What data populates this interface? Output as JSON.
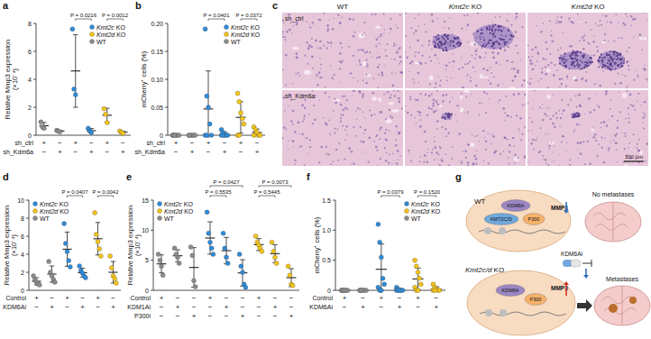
{
  "chart_data": [
    {
      "type": "dot",
      "panel_label": "a",
      "y_label": "Relative Mmp3 expression",
      "y_label_unit": "(×10⁻⁴)",
      "ylim": [
        0,
        8
      ],
      "yticks": [
        0,
        2,
        4,
        6,
        8
      ],
      "grid": false,
      "legend": "upper right",
      "series": [
        {
          "name": "Kmt2c KO",
          "color": "#2f8bd9"
        },
        {
          "name": "Kmt2d KO",
          "color": "#f4c419"
        },
        {
          "name": "WT",
          "color": "#8c8c8c"
        }
      ],
      "columns": [
        {
          "group": "WT",
          "points": [
            0.95,
            0.6,
            0.5
          ],
          "mean": 0.68,
          "sd": 0.23
        },
        {
          "group": "WT",
          "points": [
            0.35,
            0.3,
            0.25
          ],
          "mean": 0.3,
          "sd": 0.05
        },
        {
          "group": "Kmt2c KO",
          "points": [
            7.6,
            3.3,
            2.9
          ],
          "mean": 4.6,
          "sd": 2.6
        },
        {
          "group": "Kmt2c KO",
          "points": [
            0.5,
            0.3,
            0.2
          ],
          "mean": 0.33,
          "sd": 0.15
        },
        {
          "group": "Kmt2d KO",
          "points": [
            1.9,
            1.5,
            0.9
          ],
          "mean": 1.43,
          "sd": 0.5
        },
        {
          "group": "Kmt2d KO",
          "points": [
            0.3,
            0.2,
            0.15
          ],
          "mean": 0.22,
          "sd": 0.08
        }
      ],
      "conditions": [
        {
          "label": "sh_ctrl",
          "marks": [
            "+",
            "−",
            "+",
            "−",
            "+",
            "−"
          ]
        },
        {
          "label": "sh_Kdm6a",
          "marks": [
            "−",
            "+",
            "−",
            "+",
            "−",
            "+"
          ]
        }
      ],
      "p_values": [
        {
          "label": "P = 0.0216",
          "columns": [
            2,
            3
          ]
        },
        {
          "label": "P = 0.0012",
          "columns": [
            4,
            5
          ]
        }
      ]
    },
    {
      "type": "dot",
      "panel_label": "b",
      "y_label": "mCherry⁺ cells (%)",
      "ylim": [
        0,
        0.2
      ],
      "yticks": [
        0,
        0.05,
        {
          "value": 0.1,
          "label": "0.10"
        },
        0.15,
        {
          "value": 0.2,
          "label": "0.20"
        }
      ],
      "grid": false,
      "legend": "upper right",
      "series": [
        {
          "name": "Kmt2c KO",
          "color": "#2f8bd9"
        },
        {
          "name": "Kmt2d KO",
          "color": "#f4c419"
        },
        {
          "name": "WT",
          "color": "#8c8c8c"
        }
      ],
      "columns": [
        {
          "group": "WT",
          "points": [
            0,
            0,
            0,
            0,
            0,
            0,
            0
          ],
          "mean": 0,
          "sd": 0
        },
        {
          "group": "WT",
          "points": [
            0,
            0,
            0,
            0,
            0,
            0
          ],
          "mean": 0,
          "sd": 0
        },
        {
          "group": "Kmt2c KO",
          "points": [
            0.19,
            0.07,
            0.05,
            0.02,
            0,
            0,
            0
          ],
          "mean": 0.047,
          "sd": 0.068
        },
        {
          "group": "Kmt2c KO",
          "points": [
            0.01,
            0.005,
            0,
            0,
            0,
            0,
            0
          ],
          "mean": 0.002,
          "sd": 0.004
        },
        {
          "group": "Kmt2d KO",
          "points": [
            0.075,
            0.06,
            0.04,
            0.03,
            0.02,
            0,
            0
          ],
          "mean": 0.032,
          "sd": 0.028
        },
        {
          "group": "Kmt2d KO",
          "points": [
            0.015,
            0.01,
            0.005,
            0,
            0,
            0
          ],
          "mean": 0.005,
          "sd": 0.006
        }
      ],
      "conditions": [
        {
          "label": "sh_ctrl",
          "marks": [
            "+",
            "−",
            "+",
            "−",
            "+",
            "−"
          ]
        },
        {
          "label": "sh_Kdm6a",
          "marks": [
            "−",
            "+",
            "−",
            "+",
            "−",
            "+"
          ]
        }
      ],
      "p_values": [
        {
          "label": "P = 0.0401",
          "columns": [
            2,
            3
          ]
        },
        {
          "label": "P = 0.0372",
          "columns": [
            4,
            5
          ]
        }
      ]
    },
    {
      "type": "dot",
      "panel_label": "d",
      "y_label": "Relative Mmp3 expression",
      "y_label_unit": "(×10⁻⁴)",
      "ylim": [
        0,
        10
      ],
      "yticks": [
        0,
        2,
        4,
        6,
        8,
        10
      ],
      "grid": false,
      "legend": "upper left",
      "series": [
        {
          "name": "Kmt2c KO",
          "color": "#2f8bd9"
        },
        {
          "name": "Kmt2d KO",
          "color": "#f4c419"
        },
        {
          "name": "WT",
          "color": "#8c8c8c"
        }
      ],
      "columns": [
        {
          "group": "WT",
          "points": [
            1.6,
            1.2,
            0.9,
            0.7,
            0.6
          ],
          "mean": 1.0,
          "sd": 0.4
        },
        {
          "group": "WT",
          "points": [
            3.2,
            2.0,
            1.6,
            1.2,
            0.9
          ],
          "mean": 1.8,
          "sd": 0.9
        },
        {
          "group": "Kmt2c KO",
          "points": [
            7.4,
            5.2,
            4.3,
            3.3,
            2.6
          ],
          "mean": 4.56,
          "sd": 1.9
        },
        {
          "group": "Kmt2c KO",
          "points": [
            2.7,
            2.2,
            1.9,
            1.6,
            1.4
          ],
          "mean": 1.96,
          "sd": 0.5
        },
        {
          "group": "Kmt2d KO",
          "points": [
            8.6,
            6.2,
            5.4,
            4.6,
            3.8
          ],
          "mean": 5.72,
          "sd": 1.8
        },
        {
          "group": "Kmt2d KO",
          "points": [
            3.8,
            2.5,
            1.6,
            1.3,
            0.8
          ],
          "mean": 2.0,
          "sd": 1.2
        }
      ],
      "conditions": [
        {
          "label": "Control",
          "marks": [
            "+",
            "−",
            "+",
            "−",
            "+",
            "−"
          ]
        },
        {
          "label": "KDM6Ai",
          "marks": [
            "−",
            "+",
            "−",
            "+",
            "−",
            "+"
          ]
        }
      ],
      "p_values": [
        {
          "label": "P = 0.0407",
          "columns": [
            2,
            3
          ]
        },
        {
          "label": "P = 0.0042",
          "columns": [
            4,
            5
          ]
        }
      ]
    },
    {
      "type": "dot",
      "panel_label": "e",
      "y_label": "Relative Mmp3 expression",
      "y_label_unit": "(×10⁻⁴)",
      "ylim": [
        0,
        15
      ],
      "yticks": [
        0,
        5,
        10,
        15
      ],
      "grid": false,
      "legend": "upper left",
      "series": [
        {
          "name": "Kmt2c KO",
          "color": "#2f8bd9"
        },
        {
          "name": "Kmt2d KO",
          "color": "#f4c419"
        },
        {
          "name": "WT",
          "color": "#8c8c8c"
        }
      ],
      "columns": [
        {
          "group": "WT",
          "points": [
            6.0,
            5.0,
            4.0,
            2.5
          ],
          "mean": 4.4,
          "sd": 1.5
        },
        {
          "group": "WT",
          "points": [
            7.0,
            6.0,
            5.5,
            4.5
          ],
          "mean": 5.75,
          "sd": 1.0
        },
        {
          "group": "WT",
          "points": [
            7.2,
            5.8,
            1.6,
            0.6
          ],
          "mean": 3.8,
          "sd": 3.3
        },
        {
          "group": "Kmt2c KO",
          "points": [
            13.0,
            9.5,
            8.0,
            7.0,
            6.0
          ],
          "mean": 8.7,
          "sd": 2.7
        },
        {
          "group": "Kmt2c KO",
          "points": [
            9.5,
            7.0,
            5.5,
            4.5
          ],
          "mean": 6.6,
          "sd": 2.2
        },
        {
          "group": "Kmt2c KO",
          "points": [
            6.0,
            4.0,
            3.0,
            1.0,
            0.5
          ],
          "mean": 2.9,
          "sd": 2.2
        },
        {
          "group": "Kmt2d KO",
          "points": [
            9.0,
            8.0,
            7.5,
            7.0,
            6.5
          ],
          "mean": 7.6,
          "sd": 1.0
        },
        {
          "group": "Kmt2d KO",
          "points": [
            8.0,
            6.5,
            5.5,
            4.5
          ],
          "mean": 6.1,
          "sd": 1.5
        },
        {
          "group": "Kmt2d KO",
          "points": [
            4.0,
            2.5,
            1.0,
            0.8
          ],
          "mean": 2.1,
          "sd": 1.5
        }
      ],
      "conditions": [
        {
          "label": "Control",
          "marks": [
            "+",
            "−",
            "−",
            "+",
            "−",
            "−",
            "+",
            "−",
            "−"
          ]
        },
        {
          "label": "KDM1Ai",
          "marks": [
            "−",
            "+",
            "−",
            "−",
            "+",
            "−",
            "−",
            "+",
            "−"
          ]
        },
        {
          "label": "P300i",
          "marks": [
            "−",
            "−",
            "+",
            "−",
            "−",
            "+",
            "−",
            "−",
            "+"
          ]
        }
      ],
      "p_values": [
        {
          "label": "P = 0.0427",
          "columns": [
            3,
            5
          ]
        },
        {
          "label": "P = 0.5535",
          "columns": [
            3,
            4
          ]
        },
        {
          "label": "P = 0.0073",
          "columns": [
            6,
            8
          ]
        },
        {
          "label": "P = 0.5445",
          "columns": [
            6,
            7
          ]
        }
      ]
    },
    {
      "type": "dot",
      "panel_label": "f",
      "y_label": "mCherry⁺ cells (%)",
      "ylim": [
        0,
        1.5
      ],
      "yticks": [
        0,
        0.5,
        {
          "value": 1,
          "label": "1.0"
        },
        1.5
      ],
      "grid": false,
      "legend": "upper right",
      "series": [
        {
          "name": "Kmt2c KO",
          "color": "#2f8bd9"
        },
        {
          "name": "Kmt2d KO",
          "color": "#f4c419"
        },
        {
          "name": "WT",
          "color": "#8c8c8c"
        }
      ],
      "columns": [
        {
          "group": "WT",
          "points": [
            0,
            0,
            0,
            0,
            0,
            0,
            0,
            0
          ],
          "mean": 0,
          "sd": 0
        },
        {
          "group": "WT",
          "points": [
            0,
            0,
            0,
            0,
            0,
            0,
            0
          ],
          "mean": 0,
          "sd": 0
        },
        {
          "group": "Kmt2c KO",
          "points": [
            1.1,
            0.8,
            0.55,
            0.2,
            0.1,
            0.05,
            0,
            0
          ],
          "mean": 0.35,
          "sd": 0.42
        },
        {
          "group": "Kmt2c KO",
          "points": [
            0.05,
            0.02,
            0,
            0,
            0,
            0,
            0,
            0
          ],
          "mean": 0.01,
          "sd": 0.02
        },
        {
          "group": "Kmt2d KO",
          "points": [
            0.5,
            0.4,
            0.3,
            0.2,
            0.1,
            0.05,
            0,
            0
          ],
          "mean": 0.19,
          "sd": 0.18
        },
        {
          "group": "Kmt2d KO",
          "points": [
            0.1,
            0.05,
            0.02,
            0,
            0,
            0,
            0
          ],
          "mean": 0.02,
          "sd": 0.04
        }
      ],
      "conditions": [
        {
          "label": "Control",
          "marks": [
            "+",
            "−",
            "+",
            "−",
            "+",
            "−"
          ]
        },
        {
          "label": "KDM6Ai",
          "marks": [
            "−",
            "+",
            "−",
            "+",
            "−",
            "+"
          ]
        }
      ],
      "p_values": [
        {
          "label": "P = 0.0379",
          "columns": [
            2,
            3
          ]
        },
        {
          "label": "P = 0.1520",
          "columns": [
            4,
            5
          ]
        }
      ]
    }
  ],
  "histology": {
    "panel_label": "c",
    "columns": [
      "WT",
      "Kmt2c KO",
      "Kmt2d KO"
    ],
    "rows": [
      "sh_ctrl",
      "sh_Kdm6a"
    ],
    "scale_bar": "100 μm"
  },
  "schematic": {
    "panel_label": "g",
    "top": {
      "label": "WT",
      "proteins": [
        "KDM6A",
        "KMT2C/D",
        "P300"
      ],
      "gene": "MMP3",
      "outcome": "No metastases"
    },
    "bottom": {
      "label": "Kmt2c/d KO",
      "proteins": [
        "KDM6A",
        "P300"
      ],
      "gene": "MMP3",
      "drug": "KDM6Ai",
      "outcome": "Metastases"
    }
  }
}
